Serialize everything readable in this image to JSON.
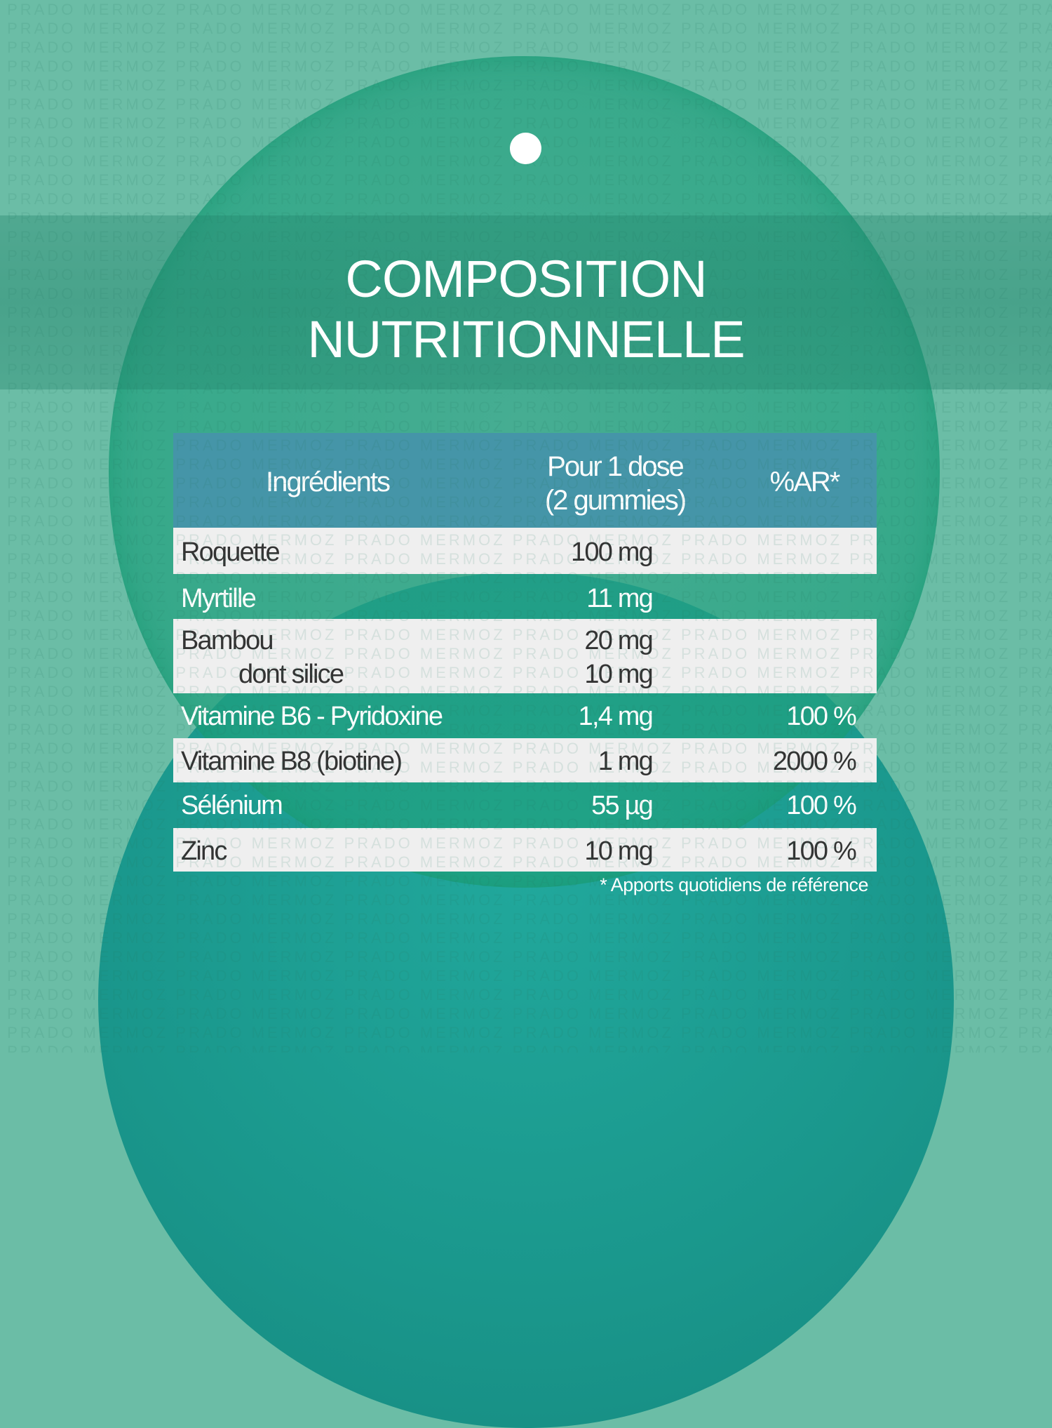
{
  "watermark": "PRADO MERMOZ",
  "colors": {
    "background": "#6bbda6",
    "header": "#4595a8",
    "row_light": "#efefef",
    "accent_circle": "#1a978c"
  },
  "title": {
    "line1": "COMPOSITION",
    "line2": "NUTRITIONNELLE"
  },
  "table": {
    "headers": {
      "ingredient": "Ingrédients",
      "dose_line1": "Pour 1 dose",
      "dose_line2": "(2 gummies)",
      "ar": "%AR*"
    },
    "rows": [
      {
        "name": "Roquette",
        "dose": "100 mg",
        "ar": ""
      },
      {
        "name": "Myrtille",
        "dose": "11 mg",
        "ar": ""
      },
      {
        "name": "Bambou",
        "dose": "20 mg",
        "ar": "",
        "sub_name": "dont silice",
        "sub_dose": "10 mg"
      },
      {
        "name": "Vitamine B6 - Pyridoxine",
        "dose": "1,4 mg",
        "ar": "100 %"
      },
      {
        "name": "Vitamine B8 (biotine)",
        "dose": "1 mg",
        "ar": "2000 %"
      },
      {
        "name": "Sélénium",
        "dose": "55 µg",
        "ar": "100 %"
      },
      {
        "name": "Zinc",
        "dose": "10 mg",
        "ar": "100 %"
      }
    ]
  },
  "footnote": "* Apports quotidiens de référence"
}
